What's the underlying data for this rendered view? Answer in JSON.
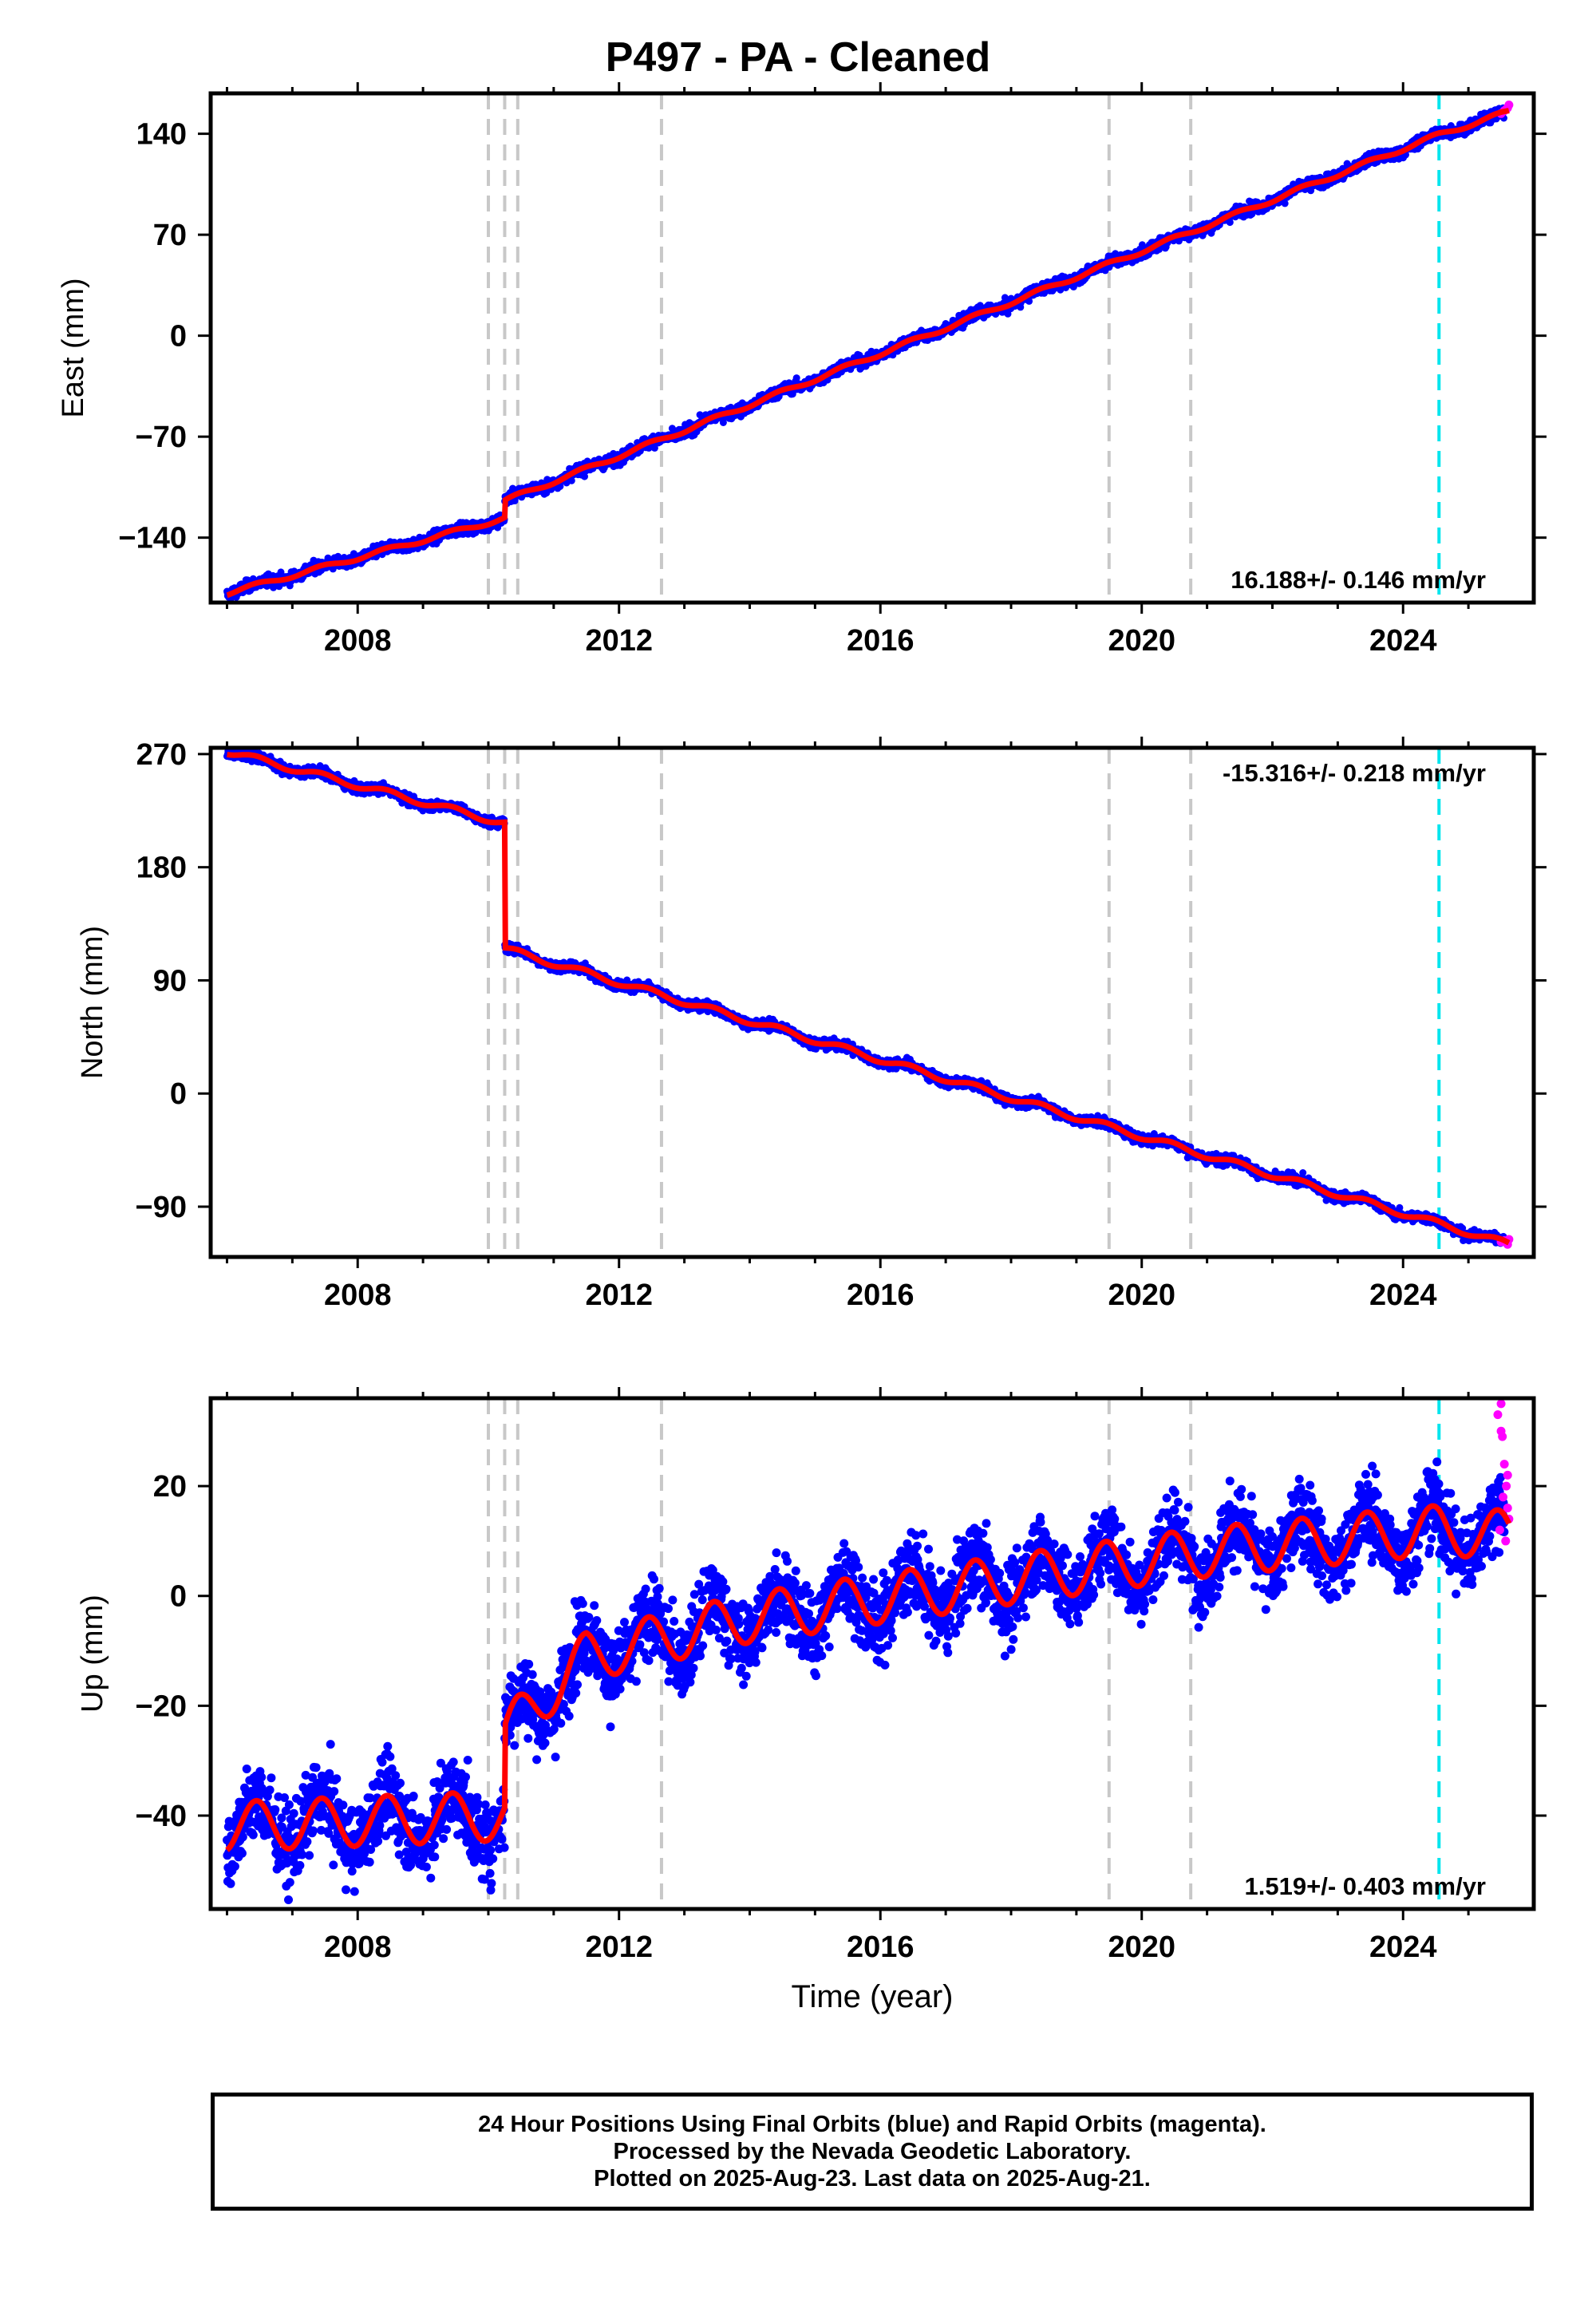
{
  "title": "P497  - PA - Cleaned",
  "x_axis": {
    "label": "Time (year)",
    "range": [
      2005.75,
      2026.0
    ],
    "ticks": [
      2008,
      2012,
      2016,
      2020,
      2024
    ],
    "tick_labels": [
      "2008",
      "2012",
      "2016",
      "2020",
      "2024"
    ]
  },
  "event_lines": {
    "gray_dashed": [
      2010.0,
      2010.25,
      2010.45,
      2012.65,
      2019.5,
      2020.75
    ],
    "cyan_dashed": [
      2024.55
    ],
    "gray_color": "#c8c8c8",
    "cyan_color": "#00e5ee"
  },
  "colors": {
    "final_orbits": "#0000ff",
    "rapid_orbits": "#ff00ff",
    "model": "#ff0000"
  },
  "chart_data": [
    {
      "type": "scatter",
      "component": "East",
      "ylabel": "East (mm)",
      "ylim": [
        -185,
        168
      ],
      "yticks": [
        140,
        70,
        0,
        -70,
        -140
      ],
      "ytick_labels": [
        "140",
        "70",
        "0",
        "−70",
        "−140"
      ],
      "velocity_label": "16.188+/- 0.146 mm/yr",
      "velocity_mm_per_yr": 16.188,
      "offsets_mm": [
        {
          "year": 2010.25,
          "step": 12
        }
      ],
      "seasonal_amplitude_mm": 1.5,
      "noise_mm": 2,
      "model_path": [
        [
          2006.0,
          -178.5
        ],
        [
          2010.25,
          -126.5
        ],
        [
          2010.25,
          -114.5
        ],
        [
          2024.55,
          139.3
        ],
        [
          2025.62,
          155.3
        ]
      ],
      "rapid_points": [
        [
          2025.5,
          154
        ],
        [
          2025.55,
          156
        ],
        [
          2025.6,
          158
        ],
        [
          2025.62,
          160
        ],
        [
          2025.58,
          157
        ]
      ]
    },
    {
      "type": "scatter",
      "component": "North",
      "ylabel": "North (mm)",
      "ylim": [
        -130,
        275
      ],
      "yticks": [
        270,
        180,
        90,
        0,
        -90
      ],
      "ytick_labels": [
        "270",
        "180",
        "90",
        "0",
        "−90"
      ],
      "velocity_label": "-15.316+/- 0.218 mm/yr",
      "velocity_mm_per_yr": -15.316,
      "offsets_mm": [
        {
          "year": 2010.25,
          "step": -100
        }
      ],
      "seasonal_amplitude_mm": 2.5,
      "noise_mm": 2,
      "model_path": [
        [
          2006.0,
          272
        ],
        [
          2010.25,
          215
        ],
        [
          2010.25,
          115
        ],
        [
          2025.62,
          -120
        ]
      ],
      "rapid_points": [
        [
          2025.5,
          -118
        ],
        [
          2025.55,
          -117
        ],
        [
          2025.6,
          -120
        ],
        [
          2025.62,
          -116
        ]
      ]
    },
    {
      "type": "scatter",
      "component": "Up",
      "ylabel": "Up (mm)",
      "ylim": [
        -57,
        36
      ],
      "yticks": [
        20,
        0,
        -20,
        -40
      ],
      "ytick_labels": [
        "20",
        "0",
        "−20",
        "−40"
      ],
      "velocity_label": "1.519+/- 0.403 mm/yr",
      "velocity_mm_per_yr": 1.519,
      "offsets_mm": [
        {
          "year": 2010.25,
          "step": 20
        }
      ],
      "seasonal_amplitude_mm": 4.5,
      "noise_mm": 3.5,
      "model_path": [
        [
          2006.0,
          -42
        ],
        [
          2010.25,
          -40
        ],
        [
          2010.25,
          -25
        ],
        [
          2011.5,
          -11
        ],
        [
          2014.0,
          -4
        ],
        [
          2018.0,
          3
        ],
        [
          2021.0,
          8
        ],
        [
          2024.55,
          12
        ],
        [
          2025.62,
          11
        ]
      ],
      "rapid_points": [
        [
          2025.45,
          33
        ],
        [
          2025.5,
          35
        ],
        [
          2025.52,
          29
        ],
        [
          2025.55,
          24
        ],
        [
          2025.58,
          20
        ],
        [
          2025.6,
          16
        ],
        [
          2025.48,
          12
        ],
        [
          2025.53,
          18
        ],
        [
          2025.57,
          10
        ],
        [
          2025.62,
          14
        ],
        [
          2025.5,
          30
        ],
        [
          2025.6,
          22
        ]
      ]
    }
  ],
  "footer": {
    "line1": "24 Hour Positions Using Final Orbits (blue) and Rapid Orbits (magenta).",
    "line2": "Processed by the Nevada Geodetic Laboratory.",
    "line3": "Plotted on 2025-Aug-23. Last data on 2025-Aug-21."
  }
}
